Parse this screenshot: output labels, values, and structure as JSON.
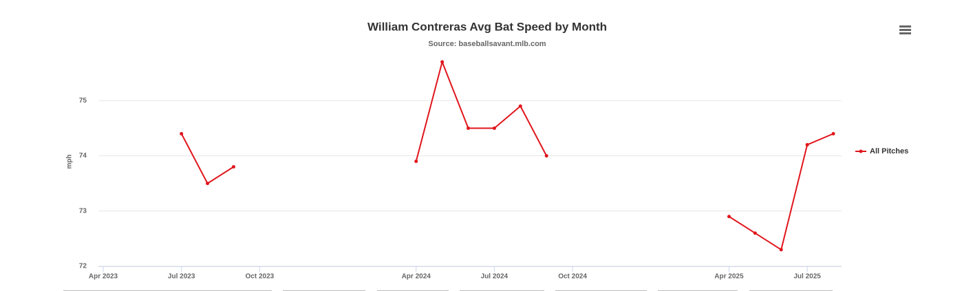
{
  "chart_data": {
    "type": "line",
    "title": "William Contreras Avg Bat Speed by Month",
    "subtitle": "Source: baseballsavant.mlb.com",
    "y_label": "mph",
    "x": [
      "2023-07",
      "2023-08",
      "2023-09",
      "2023-10",
      "2023-11",
      "2023-12",
      "2024-01",
      "2024-02",
      "2024-03",
      "2024-04",
      "2024-05",
      "2024-06",
      "2024-07",
      "2024-08",
      "2024-09",
      "2024-10",
      "2024-11",
      "2024-12",
      "2025-01",
      "2025-02",
      "2025-03",
      "2025-04",
      "2025-05",
      "2025-06",
      "2025-07",
      "2025-08"
    ],
    "series": [
      {
        "name": "All Pitches",
        "color": "#e0151b",
        "values": [
          74.4,
          73.5,
          73.8,
          null,
          null,
          null,
          null,
          null,
          null,
          73.9,
          75.7,
          74.5,
          74.5,
          74.9,
          74.0,
          null,
          null,
          null,
          null,
          null,
          null,
          72.9,
          72.6,
          72.3,
          74.2,
          74.4
        ]
      }
    ],
    "xlim": [
      "2023-04",
      "2025-08"
    ],
    "xticks": [
      {
        "value": "2023-04",
        "label": "Apr 2023"
      },
      {
        "value": "2023-07",
        "label": "Jul 2023"
      },
      {
        "value": "2023-10",
        "label": "Oct 2023"
      },
      {
        "value": "2024-04",
        "label": "Apr 2024"
      },
      {
        "value": "2024-07",
        "label": "Jul 2024"
      },
      {
        "value": "2024-10",
        "label": "Oct 2024"
      },
      {
        "value": "2025-04",
        "label": "Apr 2025"
      },
      {
        "value": "2025-07",
        "label": "Jul 2025"
      }
    ],
    "ylim": [
      72,
      75.8
    ],
    "yticks": [
      72,
      73,
      74,
      75
    ],
    "grid": true,
    "legend": "right"
  }
}
